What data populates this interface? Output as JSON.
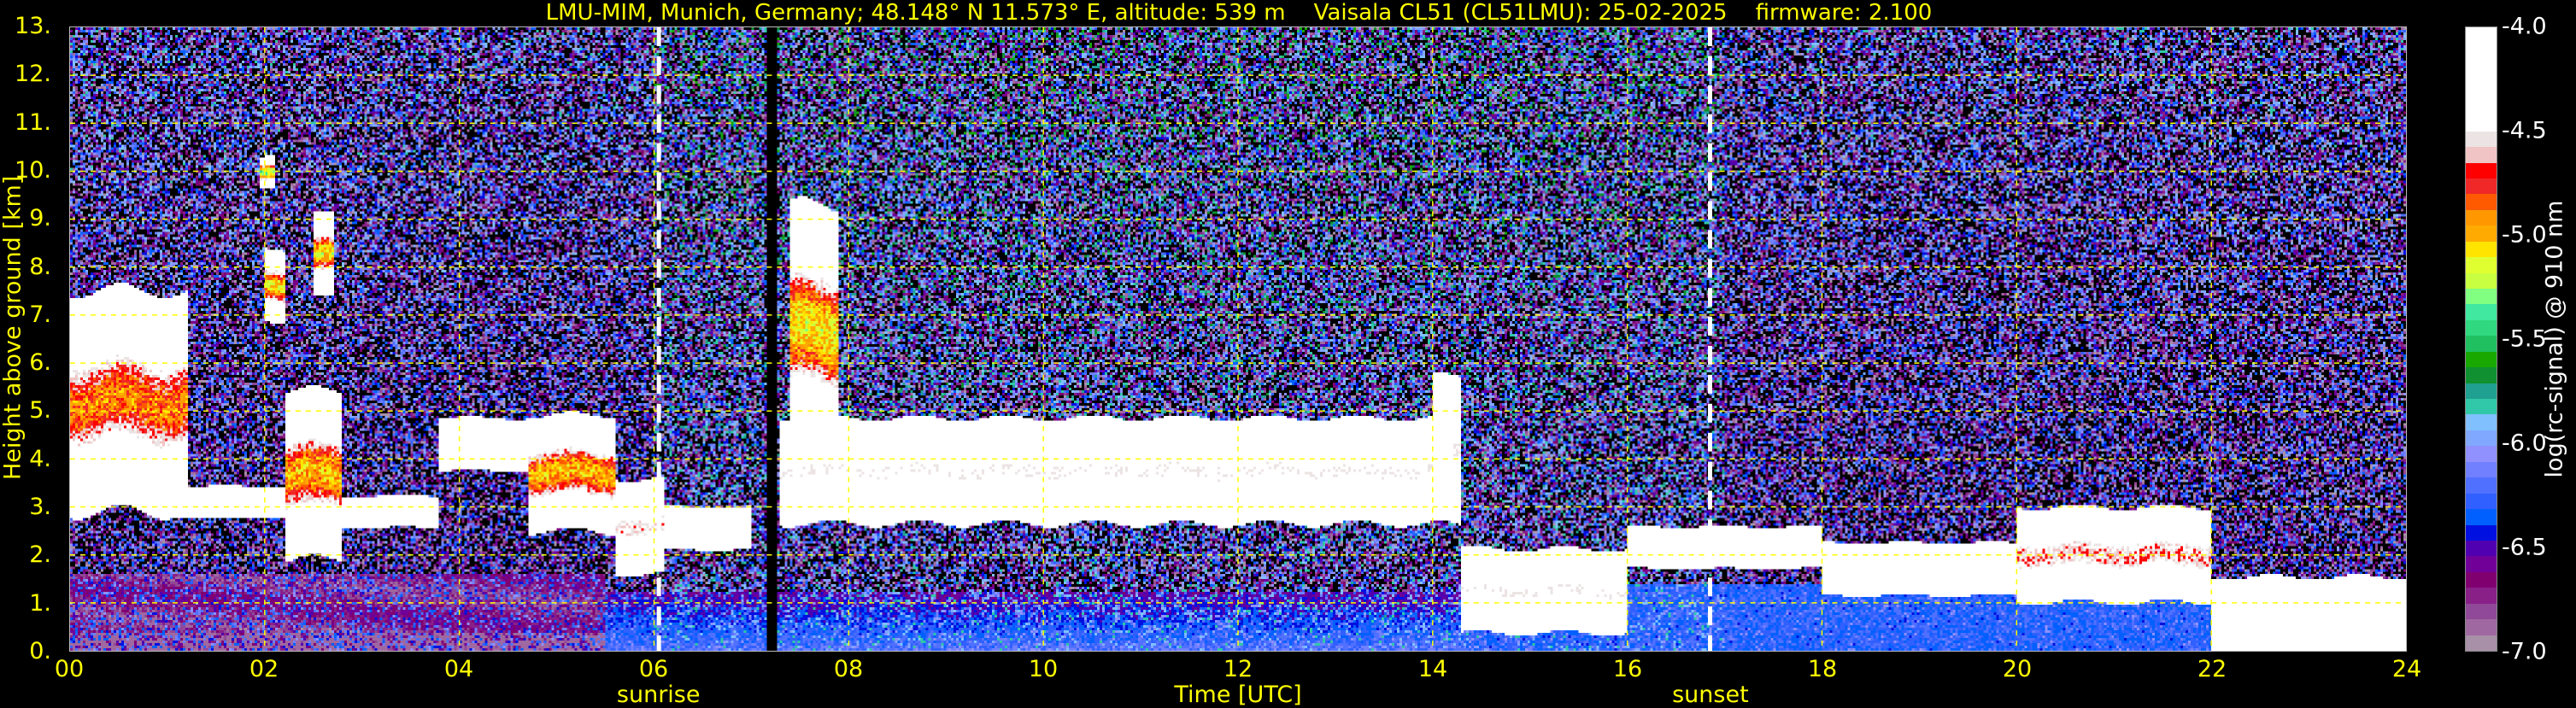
{
  "chart_data": {
    "type": "heatmap",
    "title": "LMU-MIM, Munich, Germany; 48.148° N 11.573° E, altitude: 539 m    Vaisala CL51 (CL51LMU): 25-02-2025    firmware: 2.100",
    "xlabel": "Time [UTC]",
    "ylabel": "Height above ground [km]",
    "xlim": [
      0,
      24
    ],
    "ylim": [
      0,
      13
    ],
    "x_ticks": [
      "00",
      "02",
      "04",
      "06",
      "08",
      "10",
      "12",
      "14",
      "16",
      "18",
      "20",
      "22",
      "24"
    ],
    "y_ticks": [
      "0.",
      "1.",
      "2.",
      "3.",
      "4.",
      "5.",
      "6.",
      "7.",
      "8.",
      "9.",
      "10.",
      "11.",
      "12.",
      "13."
    ],
    "grid": true,
    "grid_color": "#ffff00",
    "text_color": "#ffff00",
    "annotations": [
      {
        "label": "sunrise",
        "time_utc": 6.05
      },
      {
        "label": "sunset",
        "time_utc": 16.85
      }
    ],
    "data_gaps_utc": [
      [
        7.15,
        7.27
      ]
    ],
    "colorbar": {
      "label": "log(rc-signal) @ 910 nm",
      "range": [
        -7.0,
        -4.0
      ],
      "ticks": [
        "-4.0",
        "-4.5",
        "-5.0",
        "-5.5",
        "-6.0",
        "-6.5",
        "-7.0"
      ],
      "colors_top_to_bottom": [
        "#ffffff",
        "#ece4e4",
        "#f0c4c4",
        "#ff0000",
        "#f02828",
        "#ff5a00",
        "#ff9800",
        "#ffaa00",
        "#ffe400",
        "#e0ff30",
        "#c8ff40",
        "#80ff80",
        "#40e8a0",
        "#30d880",
        "#20c060",
        "#18a800",
        "#109030",
        "#20a090",
        "#30c8a8",
        "#80c0ff",
        "#80a8ff",
        "#9090ff",
        "#7080ff",
        "#5070ff",
        "#3060ff",
        "#0060ff",
        "#0010e0",
        "#5000b0",
        "#700098",
        "#800070",
        "#882088",
        "#904898",
        "#a068a0",
        "#a890a8"
      ]
    },
    "cloud_layers": [
      {
        "time_utc": [
          0.0,
          1.2
        ],
        "base_km": 4.2,
        "top_km": 6.2,
        "peak_log_signal": -4.9
      },
      {
        "time_utc": [
          1.0,
          2.2
        ],
        "base_km": 3.0,
        "top_km": 3.2,
        "peak_log_signal": -4.2
      },
      {
        "time_utc": [
          2.0,
          2.2
        ],
        "base_km": 7.3,
        "top_km": 7.9,
        "peak_log_signal": -5.1
      },
      {
        "time_utc": [
          2.5,
          2.7
        ],
        "base_km": 7.9,
        "top_km": 8.6,
        "peak_log_signal": -5.1
      },
      {
        "time_utc": [
          1.95,
          2.1
        ],
        "base_km": 9.9,
        "top_km": 10.1,
        "peak_log_signal": -5.3
      },
      {
        "time_utc": [
          2.2,
          2.8
        ],
        "base_km": 2.9,
        "top_km": 4.4,
        "peak_log_signal": -5.0
      },
      {
        "time_utc": [
          2.8,
          3.8
        ],
        "base_km": 2.8,
        "top_km": 3.0,
        "peak_log_signal": -4.2
      },
      {
        "time_utc": [
          3.8,
          4.7
        ],
        "base_km": 4.1,
        "top_km": 4.5,
        "peak_log_signal": -4.2
      },
      {
        "time_utc": [
          4.7,
          5.6
        ],
        "base_km": 3.2,
        "top_km": 4.2,
        "peak_log_signal": -5.0
      },
      {
        "time_utc": [
          5.6,
          6.1
        ],
        "base_km": 2.2,
        "top_km": 3.0,
        "peak_log_signal": -4.5
      },
      {
        "time_utc": [
          6.1,
          7.0
        ],
        "base_km": 2.4,
        "top_km": 2.7,
        "peak_log_signal": -4.2
      },
      {
        "time_utc": [
          7.4,
          7.9
        ],
        "base_km": 5.5,
        "top_km": 7.8,
        "peak_log_signal": -5.1
      },
      {
        "time_utc": [
          7.3,
          14.2
        ],
        "base_km": 3.3,
        "top_km": 4.2,
        "peak_log_signal": -4.4
      },
      {
        "time_utc": [
          14.0,
          14.3
        ],
        "base_km": 3.5,
        "top_km": 4.8,
        "peak_log_signal": -4.4
      },
      {
        "time_utc": [
          14.3,
          16.0
        ],
        "base_km": 0.9,
        "top_km": 1.6,
        "peak_log_signal": -4.4
      },
      {
        "time_utc": [
          16.0,
          18.0
        ],
        "base_km": 2.0,
        "top_km": 2.3,
        "peak_log_signal": -4.2
      },
      {
        "time_utc": [
          18.0,
          20.0
        ],
        "base_km": 1.5,
        "top_km": 1.9,
        "peak_log_signal": -4.3
      },
      {
        "time_utc": [
          20.0,
          22.0
        ],
        "base_km": 1.6,
        "top_km": 2.4,
        "peak_log_signal": -4.6
      },
      {
        "time_utc": [
          22.0,
          24.0
        ],
        "base_km": 0.3,
        "top_km": 1.0,
        "peak_log_signal": -4.3
      }
    ]
  }
}
